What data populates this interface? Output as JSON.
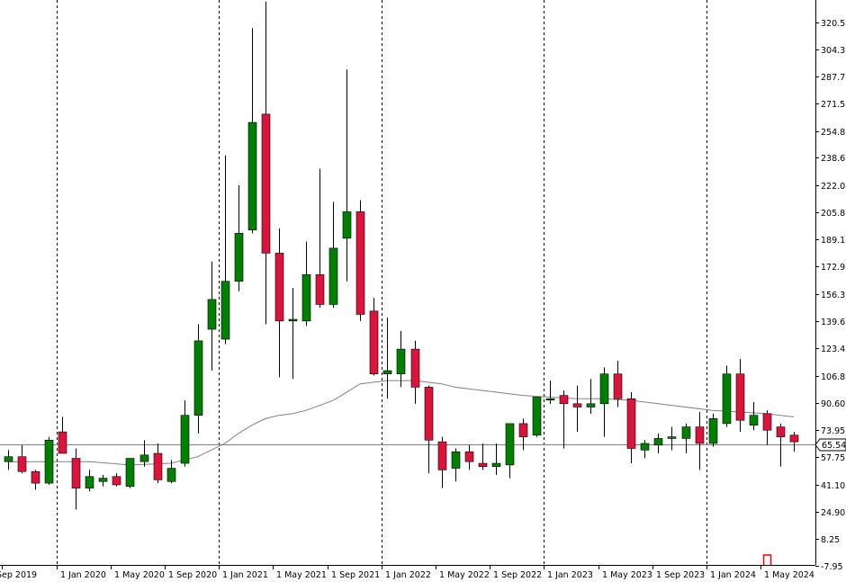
{
  "chart_data": {
    "type": "candlestick",
    "timeframe": "monthly",
    "ylim": [
      -7.95,
      328
    ],
    "y_ticks": [
      "320.55",
      "304.35",
      "287.70",
      "271.50",
      "254.85",
      "238.65",
      "222.00",
      "205.80",
      "189.15",
      "172.95",
      "156.30",
      "139.65",
      "123.45",
      "106.80",
      "90.60",
      "73.95",
      "57.75",
      "41.10",
      "24.90",
      "8.25",
      "-7.95"
    ],
    "x_labels": [
      {
        "label": "Sep 2019",
        "index": 0
      },
      {
        "label": "1 Jan 2020",
        "index": 4
      },
      {
        "label": "1 May 2020",
        "index": 8
      },
      {
        "label": "1 Sep 2020",
        "index": 12
      },
      {
        "label": "1 Jan 2021",
        "index": 16
      },
      {
        "label": "1 May 2021",
        "index": 20
      },
      {
        "label": "1 Sep 2021",
        "index": 24
      },
      {
        "label": "1 Jan 2022",
        "index": 28
      },
      {
        "label": "1 May 2022",
        "index": 32
      },
      {
        "label": "1 Sep 2022",
        "index": 36
      },
      {
        "label": "1 Jan 2023",
        "index": 40
      },
      {
        "label": "1 May 2023",
        "index": 44
      },
      {
        "label": "1 Sep 2023",
        "index": 48
      },
      {
        "label": "1 Jan 2024",
        "index": 52
      },
      {
        "label": "1 May 2024",
        "index": 56
      }
    ],
    "year_separators": [
      4,
      16,
      28,
      40,
      52
    ],
    "current_price": {
      "value": 65.54,
      "label": "65.54"
    },
    "colors": {
      "up": "#008000",
      "down": "#dc143c",
      "wick": "#000000",
      "grid": "#000000",
      "ma": "#808080",
      "price_line": "#808080",
      "marker": "#ff0000"
    },
    "candles": [
      {
        "o": 55,
        "h": 62,
        "l": 50,
        "c": 58
      },
      {
        "o": 58,
        "h": 65,
        "l": 48,
        "c": 49
      },
      {
        "o": 49,
        "h": 50,
        "l": 38,
        "c": 42
      },
      {
        "o": 42,
        "h": 70,
        "l": 41,
        "c": 68
      },
      {
        "o": 73,
        "h": 82,
        "l": 61,
        "c": 60
      },
      {
        "o": 57,
        "h": 63,
        "l": 26,
        "c": 39
      },
      {
        "o": 39,
        "h": 50,
        "l": 37,
        "c": 46
      },
      {
        "o": 43,
        "h": 47,
        "l": 40,
        "c": 45
      },
      {
        "o": 46,
        "h": 48,
        "l": 40,
        "c": 41
      },
      {
        "o": 40,
        "h": 57,
        "l": 39,
        "c": 57
      },
      {
        "o": 55,
        "h": 68,
        "l": 52,
        "c": 59
      },
      {
        "o": 60,
        "h": 66,
        "l": 42,
        "c": 44
      },
      {
        "o": 43,
        "h": 56,
        "l": 42,
        "c": 51
      },
      {
        "o": 54,
        "h": 92,
        "l": 52,
        "c": 83
      },
      {
        "o": 83,
        "h": 138,
        "l": 72,
        "c": 128
      },
      {
        "o": 135,
        "h": 176,
        "l": 110,
        "c": 153
      },
      {
        "o": 129,
        "h": 240,
        "l": 126,
        "c": 164
      },
      {
        "o": 164,
        "h": 222,
        "l": 158,
        "c": 193
      },
      {
        "o": 195,
        "h": 317,
        "l": 193,
        "c": 260
      },
      {
        "o": 265,
        "h": 333,
        "l": 138,
        "c": 181
      },
      {
        "o": 181,
        "h": 196,
        "l": 106,
        "c": 140
      },
      {
        "o": 140,
        "h": 160,
        "l": 105,
        "c": 141
      },
      {
        "o": 140,
        "h": 188,
        "l": 137,
        "c": 168
      },
      {
        "o": 168,
        "h": 232,
        "l": 148,
        "c": 150
      },
      {
        "o": 150,
        "h": 212,
        "l": 148,
        "c": 184
      },
      {
        "o": 190,
        "h": 292,
        "l": 164,
        "c": 206
      },
      {
        "o": 206,
        "h": 213,
        "l": 140,
        "c": 144
      },
      {
        "o": 146,
        "h": 154,
        "l": 107,
        "c": 108
      },
      {
        "o": 108,
        "h": 142,
        "l": 93,
        "c": 110
      },
      {
        "o": 108,
        "h": 134,
        "l": 100,
        "c": 123
      },
      {
        "o": 123,
        "h": 128,
        "l": 90,
        "c": 100
      },
      {
        "o": 100,
        "h": 101,
        "l": 48,
        "c": 68
      },
      {
        "o": 67,
        "h": 70,
        "l": 39,
        "c": 50
      },
      {
        "o": 51,
        "h": 63,
        "l": 43,
        "c": 61
      },
      {
        "o": 61,
        "h": 65,
        "l": 50,
        "c": 55
      },
      {
        "o": 54,
        "h": 66,
        "l": 50,
        "c": 52
      },
      {
        "o": 52,
        "h": 66,
        "l": 47,
        "c": 54
      },
      {
        "o": 53,
        "h": 76,
        "l": 45,
        "c": 78
      },
      {
        "o": 78,
        "h": 81,
        "l": 62,
        "c": 70
      },
      {
        "o": 71,
        "h": 93,
        "l": 70,
        "c": 94
      },
      {
        "o": 93,
        "h": 104,
        "l": 90,
        "c": 93
      },
      {
        "o": 95,
        "h": 98,
        "l": 63,
        "c": 90
      },
      {
        "o": 90,
        "h": 101,
        "l": 73,
        "c": 88
      },
      {
        "o": 88,
        "h": 105,
        "l": 84,
        "c": 90
      },
      {
        "o": 90,
        "h": 112,
        "l": 70,
        "c": 108
      },
      {
        "o": 108,
        "h": 116,
        "l": 88,
        "c": 93
      },
      {
        "o": 93,
        "h": 97,
        "l": 54,
        "c": 63
      },
      {
        "o": 62,
        "h": 68,
        "l": 57,
        "c": 66
      },
      {
        "o": 65,
        "h": 72,
        "l": 60,
        "c": 69
      },
      {
        "o": 69,
        "h": 76,
        "l": 62,
        "c": 70
      },
      {
        "o": 69,
        "h": 78,
        "l": 60,
        "c": 76
      },
      {
        "o": 76,
        "h": 85,
        "l": 50,
        "c": 66
      },
      {
        "o": 66,
        "h": 84,
        "l": 64,
        "c": 81
      },
      {
        "o": 78,
        "h": 113,
        "l": 76,
        "c": 108
      },
      {
        "o": 108,
        "h": 117,
        "l": 73,
        "c": 80
      },
      {
        "o": 77,
        "h": 91,
        "l": 74,
        "c": 83
      },
      {
        "o": 84,
        "h": 86,
        "l": 65,
        "c": 74
      },
      {
        "o": 76,
        "h": 78,
        "l": 52,
        "c": 70
      },
      {
        "o": 71,
        "h": 73,
        "l": 61,
        "c": 67
      }
    ],
    "moving_average": [
      [
        0,
        55
      ],
      [
        3,
        55
      ],
      [
        6,
        55
      ],
      [
        9,
        53
      ],
      [
        12,
        54
      ],
      [
        14,
        58
      ],
      [
        16,
        66
      ],
      [
        17,
        72
      ],
      [
        18,
        77
      ],
      [
        19,
        81
      ],
      [
        20,
        83
      ],
      [
        21,
        84
      ],
      [
        22,
        86
      ],
      [
        23,
        89
      ],
      [
        24,
        92
      ],
      [
        25,
        97
      ],
      [
        26,
        102
      ],
      [
        27,
        103
      ],
      [
        28,
        104
      ],
      [
        29,
        104
      ],
      [
        30,
        104
      ],
      [
        31,
        103
      ],
      [
        32,
        102
      ],
      [
        33,
        100
      ],
      [
        34,
        99
      ],
      [
        36,
        97
      ],
      [
        38,
        95
      ],
      [
        40,
        94
      ],
      [
        42,
        93
      ],
      [
        44,
        93
      ],
      [
        46,
        92
      ],
      [
        48,
        90
      ],
      [
        50,
        88
      ],
      [
        52,
        86
      ],
      [
        54,
        85
      ],
      [
        56,
        84
      ],
      [
        58,
        82
      ]
    ],
    "marker": {
      "index": 56
    }
  }
}
